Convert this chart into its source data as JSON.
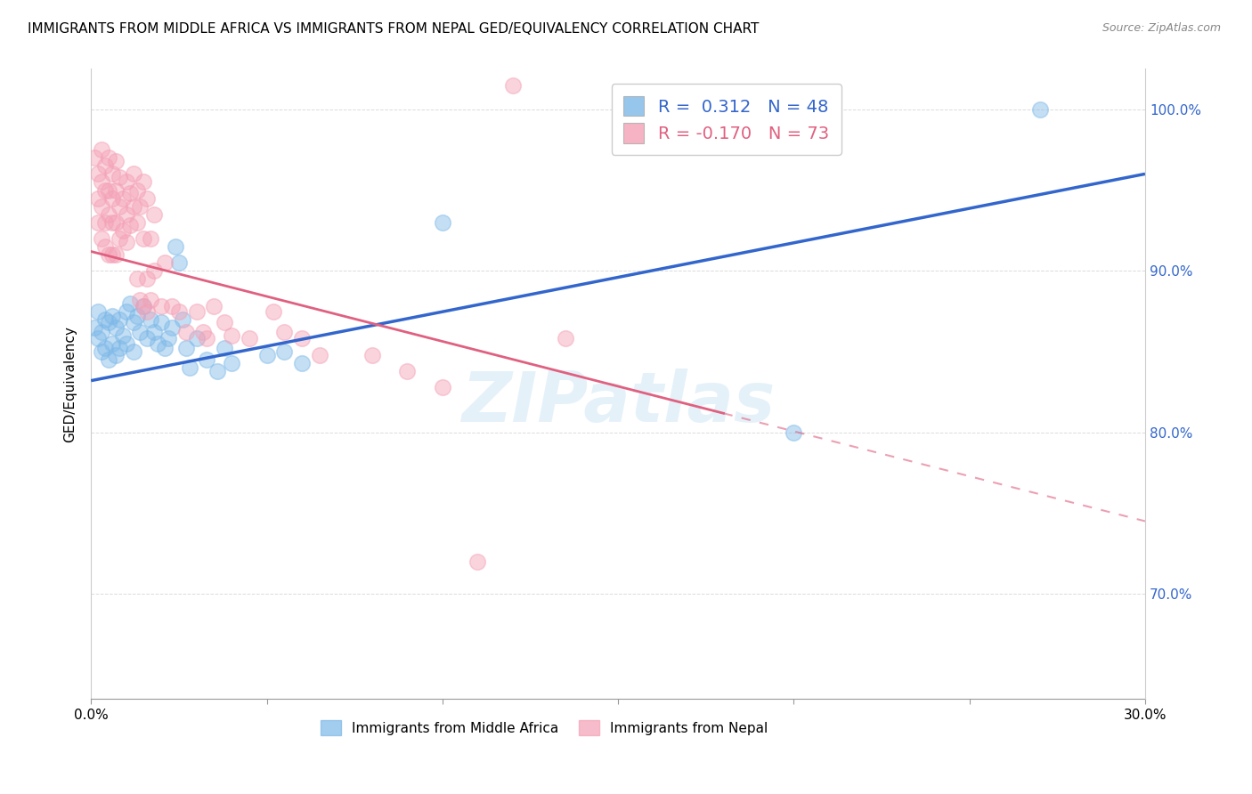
{
  "title": "IMMIGRANTS FROM MIDDLE AFRICA VS IMMIGRANTS FROM NEPAL GED/EQUIVALENCY CORRELATION CHART",
  "source": "Source: ZipAtlas.com",
  "ylabel": "GED/Equivalency",
  "xlim": [
    0.0,
    0.3
  ],
  "ylim": [
    0.635,
    1.025
  ],
  "legend1_label": "R =  0.312   N = 48",
  "legend2_label": "R = -0.170   N = 73",
  "legend_x_label": "Immigrants from Middle Africa",
  "legend_y_label": "Immigrants from Nepal",
  "blue_color": "#7db8e8",
  "pink_color": "#f4a0b5",
  "blue_line_color": "#3366cc",
  "pink_line_color": "#e06080",
  "watermark": "ZIPatlas",
  "grid_color": "#cccccc",
  "blue_scatter": [
    [
      0.001,
      0.865
    ],
    [
      0.002,
      0.858
    ],
    [
      0.002,
      0.875
    ],
    [
      0.003,
      0.862
    ],
    [
      0.003,
      0.85
    ],
    [
      0.004,
      0.87
    ],
    [
      0.004,
      0.852
    ],
    [
      0.005,
      0.868
    ],
    [
      0.005,
      0.845
    ],
    [
      0.006,
      0.872
    ],
    [
      0.006,
      0.855
    ],
    [
      0.007,
      0.865
    ],
    [
      0.007,
      0.848
    ],
    [
      0.008,
      0.87
    ],
    [
      0.008,
      0.852
    ],
    [
      0.009,
      0.86
    ],
    [
      0.01,
      0.875
    ],
    [
      0.01,
      0.855
    ],
    [
      0.011,
      0.88
    ],
    [
      0.012,
      0.868
    ],
    [
      0.012,
      0.85
    ],
    [
      0.013,
      0.872
    ],
    [
      0.014,
      0.862
    ],
    [
      0.015,
      0.878
    ],
    [
      0.016,
      0.858
    ],
    [
      0.017,
      0.87
    ],
    [
      0.018,
      0.862
    ],
    [
      0.019,
      0.855
    ],
    [
      0.02,
      0.868
    ],
    [
      0.021,
      0.852
    ],
    [
      0.022,
      0.858
    ],
    [
      0.023,
      0.865
    ],
    [
      0.024,
      0.915
    ],
    [
      0.025,
      0.905
    ],
    [
      0.026,
      0.87
    ],
    [
      0.027,
      0.852
    ],
    [
      0.028,
      0.84
    ],
    [
      0.03,
      0.858
    ],
    [
      0.033,
      0.845
    ],
    [
      0.036,
      0.838
    ],
    [
      0.038,
      0.852
    ],
    [
      0.04,
      0.843
    ],
    [
      0.05,
      0.848
    ],
    [
      0.055,
      0.85
    ],
    [
      0.06,
      0.843
    ],
    [
      0.1,
      0.93
    ],
    [
      0.2,
      0.8
    ],
    [
      0.27,
      1.0
    ]
  ],
  "pink_scatter": [
    [
      0.001,
      0.97
    ],
    [
      0.002,
      0.96
    ],
    [
      0.002,
      0.945
    ],
    [
      0.002,
      0.93
    ],
    [
      0.003,
      0.975
    ],
    [
      0.003,
      0.955
    ],
    [
      0.003,
      0.94
    ],
    [
      0.003,
      0.92
    ],
    [
      0.004,
      0.965
    ],
    [
      0.004,
      0.95
    ],
    [
      0.004,
      0.93
    ],
    [
      0.004,
      0.915
    ],
    [
      0.005,
      0.97
    ],
    [
      0.005,
      0.95
    ],
    [
      0.005,
      0.935
    ],
    [
      0.005,
      0.91
    ],
    [
      0.006,
      0.96
    ],
    [
      0.006,
      0.945
    ],
    [
      0.006,
      0.93
    ],
    [
      0.006,
      0.91
    ],
    [
      0.007,
      0.968
    ],
    [
      0.007,
      0.95
    ],
    [
      0.007,
      0.93
    ],
    [
      0.007,
      0.91
    ],
    [
      0.008,
      0.958
    ],
    [
      0.008,
      0.94
    ],
    [
      0.008,
      0.92
    ],
    [
      0.009,
      0.945
    ],
    [
      0.009,
      0.925
    ],
    [
      0.01,
      0.955
    ],
    [
      0.01,
      0.935
    ],
    [
      0.01,
      0.918
    ],
    [
      0.011,
      0.948
    ],
    [
      0.011,
      0.928
    ],
    [
      0.012,
      0.96
    ],
    [
      0.012,
      0.94
    ],
    [
      0.013,
      0.95
    ],
    [
      0.013,
      0.93
    ],
    [
      0.013,
      0.895
    ],
    [
      0.014,
      0.94
    ],
    [
      0.014,
      0.882
    ],
    [
      0.015,
      0.955
    ],
    [
      0.015,
      0.92
    ],
    [
      0.015,
      0.878
    ],
    [
      0.016,
      0.945
    ],
    [
      0.016,
      0.895
    ],
    [
      0.016,
      0.875
    ],
    [
      0.017,
      0.92
    ],
    [
      0.017,
      0.882
    ],
    [
      0.018,
      0.935
    ],
    [
      0.018,
      0.9
    ],
    [
      0.02,
      0.878
    ],
    [
      0.021,
      0.905
    ],
    [
      0.023,
      0.878
    ],
    [
      0.025,
      0.875
    ],
    [
      0.027,
      0.862
    ],
    [
      0.03,
      0.875
    ],
    [
      0.032,
      0.862
    ],
    [
      0.033,
      0.858
    ],
    [
      0.035,
      0.878
    ],
    [
      0.038,
      0.868
    ],
    [
      0.04,
      0.86
    ],
    [
      0.045,
      0.858
    ],
    [
      0.052,
      0.875
    ],
    [
      0.055,
      0.862
    ],
    [
      0.06,
      0.858
    ],
    [
      0.065,
      0.848
    ],
    [
      0.08,
      0.848
    ],
    [
      0.09,
      0.838
    ],
    [
      0.1,
      0.828
    ],
    [
      0.11,
      0.72
    ],
    [
      0.12,
      1.015
    ],
    [
      0.135,
      0.858
    ]
  ],
  "blue_line": {
    "x0": 0.0,
    "y0": 0.832,
    "x1": 0.3,
    "y1": 0.96
  },
  "pink_line": {
    "x0": 0.0,
    "y0": 0.912,
    "x1": 0.3,
    "y1": 0.745
  }
}
